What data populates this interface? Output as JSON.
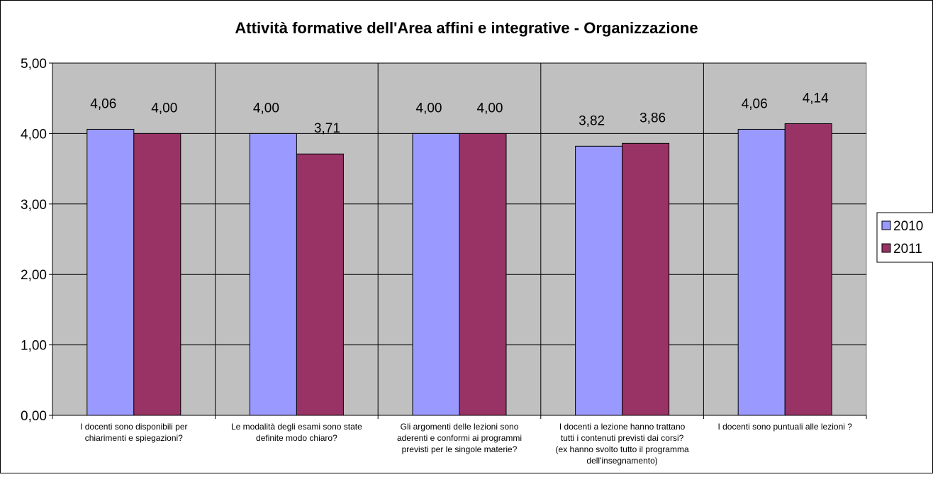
{
  "chart_data": {
    "type": "bar",
    "title": "Attività formative dell'Area affini e integrative - Organizzazione",
    "xlabel": "",
    "ylabel": "",
    "ylim": [
      0,
      5
    ],
    "yticks": [
      "0,00",
      "1,00",
      "2,00",
      "3,00",
      "4,00",
      "5,00"
    ],
    "grid": true,
    "legend_position": "right",
    "categories": [
      [
        "I docenti sono disponibili  per",
        "chiarimenti e spiegazioni?"
      ],
      [
        "Le modalità degli esami sono state",
        "definite modo chiaro?"
      ],
      [
        "Gli argomenti delle lezioni sono",
        "aderenti e conformi ai programmi",
        "previsti per le singole materie?"
      ],
      [
        "I docenti a lezione hanno trattano",
        "tutti i contenuti previsti dai corsi?",
        "(ex hanno svolto tutto il programma",
        "dell'insegnamento)"
      ],
      [
        "I docenti sono puntuali alle lezioni ?"
      ]
    ],
    "series": [
      {
        "name": "2010",
        "color": "#9999ff",
        "values": [
          4.06,
          4.0,
          4.0,
          3.82,
          4.06
        ],
        "labels": [
          "4,06",
          "4,00",
          "4,00",
          "3,82",
          "4,06"
        ]
      },
      {
        "name": "2011",
        "color": "#993366",
        "values": [
          4.0,
          3.71,
          4.0,
          3.86,
          4.14
        ],
        "labels": [
          "4,00",
          "3,71",
          "4,00",
          "3,86",
          "4,14"
        ]
      }
    ],
    "plot_background": "#c0c0c0"
  }
}
